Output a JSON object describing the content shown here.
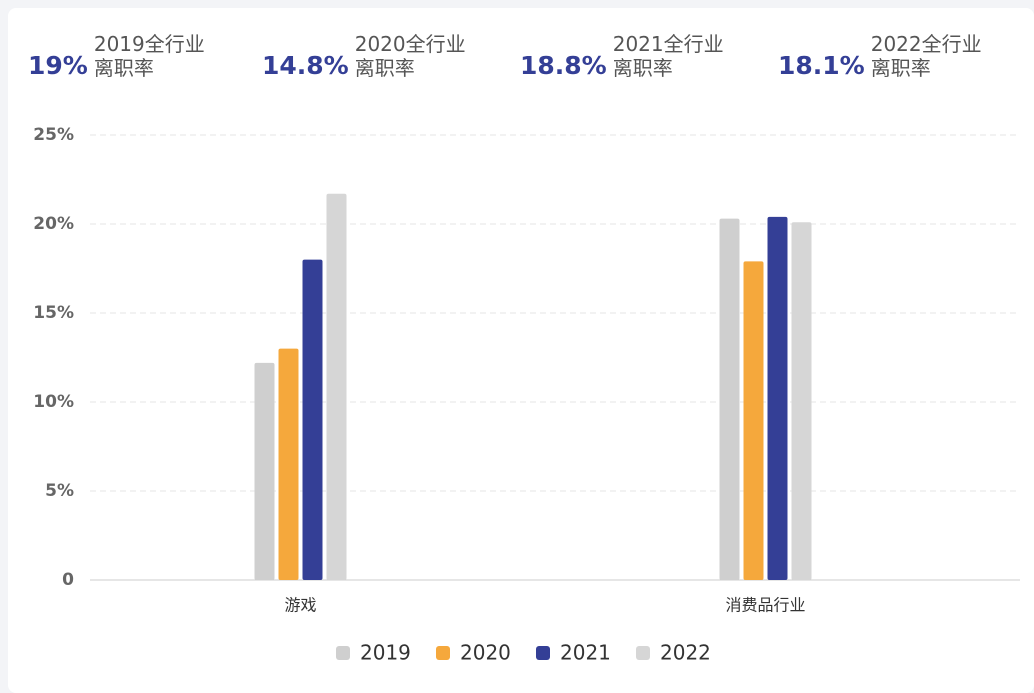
{
  "stats": [
    {
      "value": "19%",
      "line1": "2019全行业",
      "line2": "离职率"
    },
    {
      "value": "14.8%",
      "line1": "2020全行业",
      "line2": "离职率"
    },
    {
      "value": "18.8%",
      "line1": "2021全行业",
      "line2": "离职率"
    },
    {
      "value": "18.1%",
      "line1": "2022全行业",
      "line2": "离职率"
    }
  ],
  "chart_data": {
    "type": "bar",
    "categories": [
      "游戏",
      "消费品行业"
    ],
    "series": [
      {
        "name": "2019",
        "color": "#cfcfcf",
        "values": [
          12.2,
          20.3
        ]
      },
      {
        "name": "2020",
        "color": "#f5a83c",
        "values": [
          13.0,
          17.9
        ]
      },
      {
        "name": "2021",
        "color": "#343f96",
        "values": [
          18.0,
          20.4
        ]
      },
      {
        "name": "2022",
        "color": "#d6d6d6",
        "values": [
          21.7,
          20.1
        ]
      }
    ],
    "ylim": [
      0,
      25
    ],
    "yticks": [
      0,
      {
        "value": 5,
        "label": "5%"
      },
      {
        "value": 10,
        "label": "10%"
      },
      {
        "value": 15,
        "label": "15%"
      },
      {
        "value": 20,
        "label": "20%"
      },
      {
        "value": 25,
        "label": "25%"
      }
    ],
    "grid": true,
    "legend": "bottom"
  }
}
